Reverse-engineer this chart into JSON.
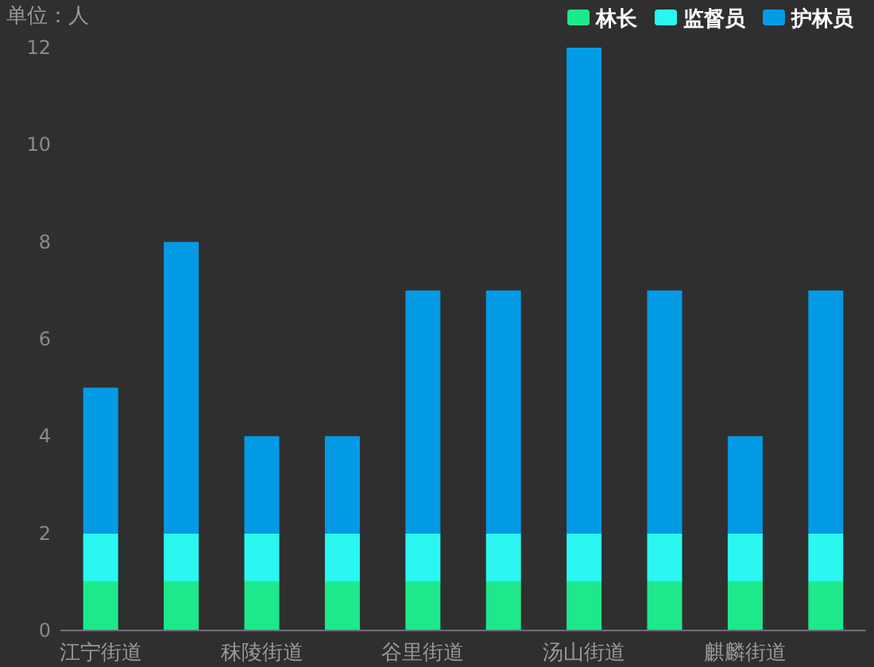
{
  "chart_data": {
    "type": "bar",
    "stacked": true,
    "ylabel": "单位：人",
    "categories": [
      "江宁街道",
      null,
      "秣陵街道",
      null,
      "谷里街道",
      null,
      "汤山街道",
      null,
      "麒麟街道",
      null
    ],
    "series": [
      {
        "name": "林长",
        "color": "#1de98b",
        "values": [
          1,
          1,
          1,
          1,
          1,
          1,
          1,
          1,
          1,
          1
        ]
      },
      {
        "name": "监督员",
        "color": "#2af7f0",
        "values": [
          1,
          1,
          1,
          1,
          1,
          1,
          1,
          1,
          1,
          1
        ]
      },
      {
        "name": "护林员",
        "color": "#039be5",
        "values": [
          3,
          6,
          2,
          2,
          5,
          5,
          10,
          5,
          2,
          5
        ]
      }
    ],
    "ylim": [
      0,
      12
    ],
    "yticks": [
      0,
      2,
      4,
      6,
      8,
      10,
      12
    ],
    "grid": false,
    "legend": "top right"
  }
}
